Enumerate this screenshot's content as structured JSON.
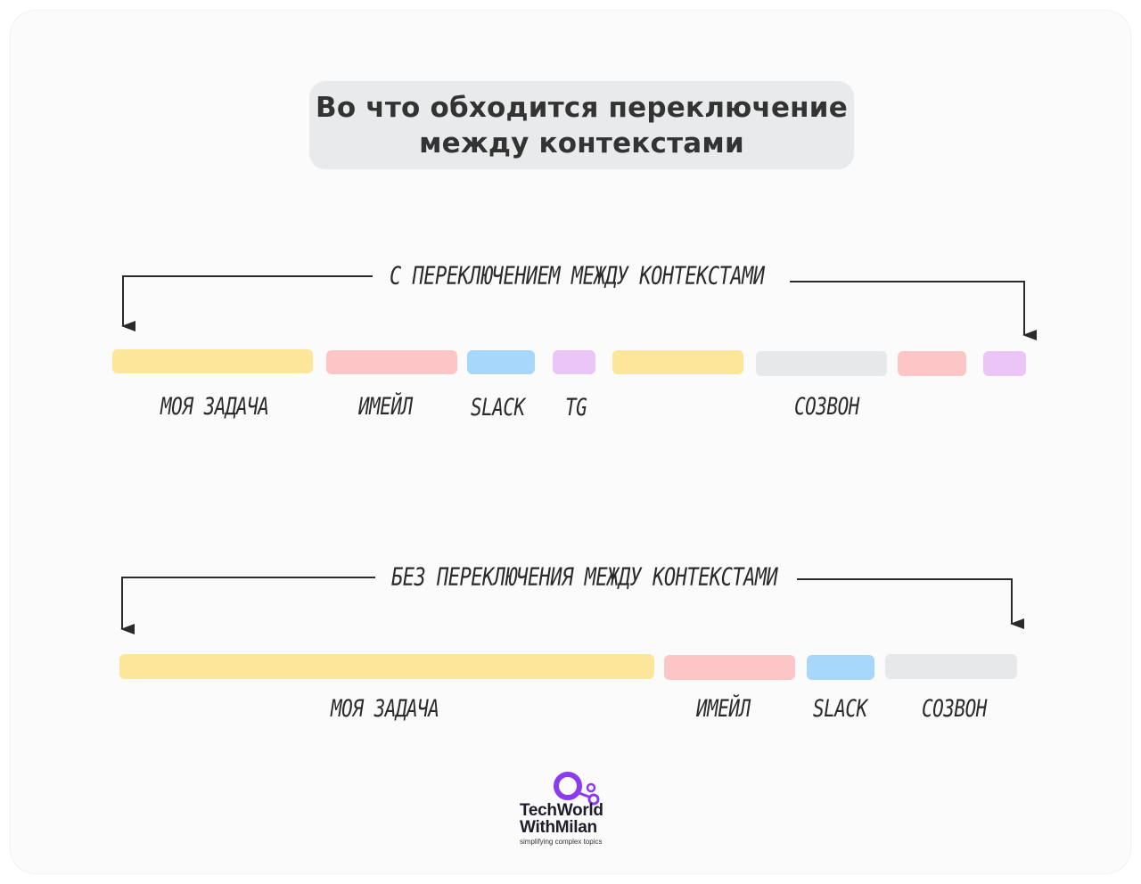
{
  "title": "Во что обходится переключение\nмежду контекстами",
  "with_switching": {
    "label": "с переключением между контекстами",
    "segments": [
      {
        "label": "моя задача",
        "color": "#fbe69a"
      },
      {
        "label": "имейл",
        "color": "#fdc6c6"
      },
      {
        "label": "slack",
        "color": "#a7d7fa"
      },
      {
        "label": "tg",
        "color": "#ebc5f7"
      },
      {
        "label": "",
        "color": "#fbe69a"
      },
      {
        "label": "созвон",
        "color": "#e6e8ea"
      },
      {
        "label": "",
        "color": "#fdc6c6"
      },
      {
        "label": "",
        "color": "#ebc5f7"
      }
    ]
  },
  "without_switching": {
    "label": "без переключения между контекстами",
    "segments": [
      {
        "label": "моя задача",
        "color": "#fbe69a"
      },
      {
        "label": "имейл",
        "color": "#fdc6c6"
      },
      {
        "label": "slack",
        "color": "#a7d7fa"
      },
      {
        "label": "созвон",
        "color": "#e6e8ea"
      }
    ]
  },
  "logo": {
    "name_line1": "TechWorld",
    "name_line2": "WithMilan",
    "tagline": "simplifying complex topics",
    "accent": "#8b3cf0"
  }
}
